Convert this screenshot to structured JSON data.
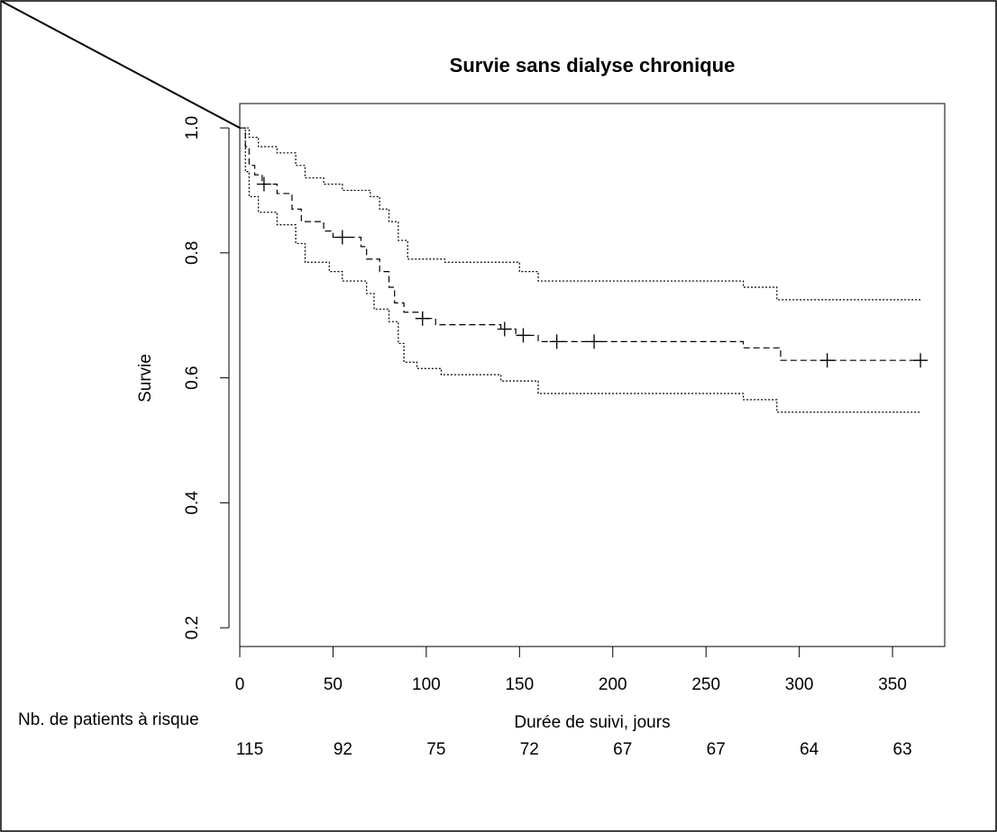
{
  "chart_data": {
    "type": "survival",
    "title": "Survie sans dialyse chronique",
    "xlabel": "Durée de suivi, jours",
    "ylabel": "Survie",
    "xlim": [
      0,
      378
    ],
    "ylim": [
      0.17,
      1.039
    ],
    "xticks": [
      0,
      50,
      100,
      150,
      200,
      250,
      300,
      350
    ],
    "yticks": [
      {
        "value": 0.2,
        "label": "0.2"
      },
      {
        "value": 0.4,
        "label": "0.4"
      },
      {
        "value": 0.6,
        "label": "0.6"
      },
      {
        "value": 0.8,
        "label": "0.8"
      },
      {
        "value": 1.0,
        "label": "1.0"
      }
    ],
    "series": [
      {
        "style": "dashed",
        "color": "#000",
        "x": [
          0,
          3,
          5,
          8,
          12,
          20,
          28,
          33,
          45,
          50,
          65,
          68,
          75,
          80,
          83,
          88,
          98,
          105,
          140,
          148,
          160,
          270,
          290,
          365
        ],
        "values": [
          1.0,
          0.97,
          0.94,
          0.925,
          0.91,
          0.895,
          0.87,
          0.85,
          0.835,
          0.825,
          0.81,
          0.79,
          0.77,
          0.745,
          0.72,
          0.705,
          0.695,
          0.685,
          0.678,
          0.668,
          0.658,
          0.648,
          0.628,
          0.628
        ]
      },
      {
        "style": "dotted",
        "color": "#000",
        "x": [
          0,
          5,
          10,
          20,
          30,
          35,
          45,
          55,
          70,
          75,
          80,
          85,
          90,
          110,
          150,
          160,
          270,
          288,
          365
        ],
        "values": [
          1.0,
          0.985,
          0.97,
          0.96,
          0.94,
          0.92,
          0.91,
          0.9,
          0.89,
          0.87,
          0.85,
          0.82,
          0.79,
          0.785,
          0.77,
          0.755,
          0.745,
          0.725,
          0.725
        ]
      },
      {
        "style": "dotted",
        "color": "#000",
        "x": [
          0,
          3,
          5,
          10,
          20,
          30,
          35,
          48,
          55,
          68,
          72,
          80,
          85,
          88,
          95,
          108,
          140,
          160,
          270,
          288,
          365
        ],
        "values": [
          1.0,
          0.93,
          0.89,
          0.865,
          0.845,
          0.815,
          0.785,
          0.77,
          0.755,
          0.735,
          0.71,
          0.69,
          0.655,
          0.625,
          0.615,
          0.605,
          0.595,
          0.575,
          0.565,
          0.545,
          0.545
        ]
      }
    ],
    "censored": {
      "x": [
        13,
        55,
        98,
        142,
        152,
        170,
        190,
        315,
        365
      ],
      "values": [
        0.91,
        0.825,
        0.695,
        0.678,
        0.668,
        0.658,
        0.658,
        0.628,
        0.628
      ]
    },
    "risk_title": "Nb. de patients à risque",
    "risk_times": [
      0,
      50,
      100,
      150,
      200,
      250,
      300,
      350
    ],
    "risk_counts": [
      115,
      92,
      75,
      72,
      67,
      67,
      64,
      63
    ]
  }
}
